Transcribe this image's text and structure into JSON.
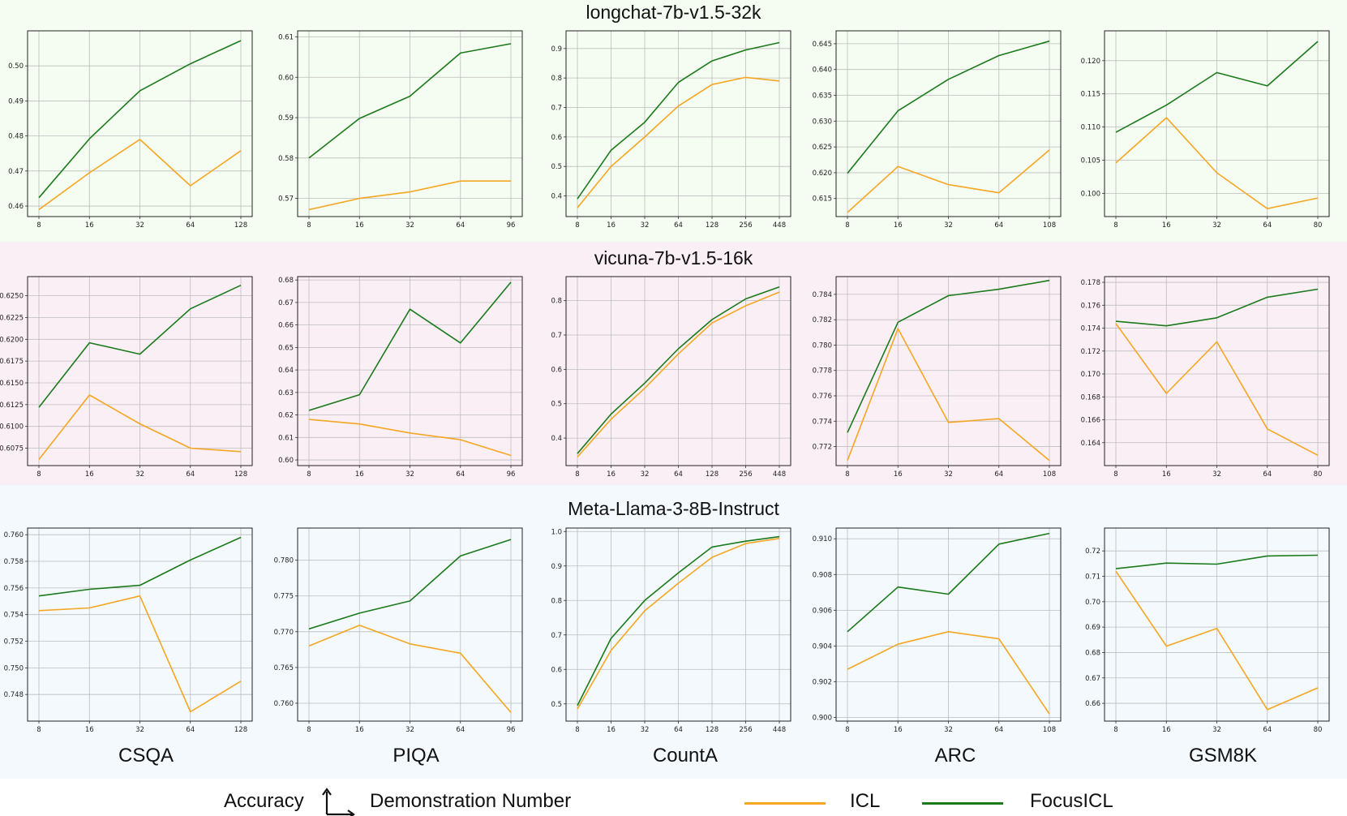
{
  "colors": {
    "icl": "#f5a623",
    "focus_icl": "#1b7a1b",
    "band_backgrounds": [
      "#f5fcf1",
      "#fbeff6",
      "#f3f9fd"
    ]
  },
  "column_labels": [
    "CSQA",
    "PIQA",
    "CountA",
    "ARC",
    "GSM8K"
  ],
  "legend": {
    "y_label": "Accuracy",
    "x_label": "Demonstration Number",
    "icl_label": "ICL",
    "focus_icl_label": "FocusICL"
  },
  "rows": [
    {
      "title": "longchat-7b-v1.5-32k"
    },
    {
      "title": "vicuna-7b-v1.5-16k"
    },
    {
      "title": "Meta-Llama-3-8B-Instruct"
    }
  ],
  "chart_data": [
    {
      "type": "line",
      "row": 0,
      "col": 0,
      "x": [
        "8",
        "16",
        "32",
        "64",
        "128"
      ],
      "ylim": [
        0.457,
        0.51
      ],
      "yticks": [
        "0.46",
        "0.47",
        "0.48",
        "0.49",
        "0.50"
      ],
      "series": [
        {
          "name": "ICL",
          "values": [
            0.459,
            0.4695,
            0.479,
            0.4658,
            0.4758
          ]
        },
        {
          "name": "FocusICL",
          "values": [
            0.4624,
            0.4792,
            0.4929,
            0.5006,
            0.5072
          ]
        }
      ]
    },
    {
      "type": "line",
      "row": 0,
      "col": 1,
      "x": [
        "8",
        "16",
        "32",
        "64",
        "96"
      ],
      "ylim": [
        0.5655,
        0.6115
      ],
      "yticks": [
        "0.57",
        "0.58",
        "0.59",
        "0.60",
        "0.61"
      ],
      "series": [
        {
          "name": "ICL",
          "values": [
            0.5672,
            0.57,
            0.5716,
            0.5743,
            0.5743
          ]
        },
        {
          "name": "FocusICL",
          "values": [
            0.58,
            0.5898,
            0.5953,
            0.606,
            0.6083
          ]
        }
      ]
    },
    {
      "type": "line",
      "row": 0,
      "col": 2,
      "x": [
        "8",
        "16",
        "32",
        "64",
        "128",
        "256",
        "448"
      ],
      "ylim": [
        0.33,
        0.96
      ],
      "yticks": [
        "0.4",
        "0.5",
        "0.6",
        "0.7",
        "0.8",
        "0.9"
      ],
      "series": [
        {
          "name": "ICL",
          "values": [
            0.36,
            0.5,
            0.6,
            0.705,
            0.778,
            0.802,
            0.79
          ]
        },
        {
          "name": "FocusICL",
          "values": [
            0.39,
            0.555,
            0.65,
            0.785,
            0.858,
            0.895,
            0.92
          ]
        }
      ]
    },
    {
      "type": "line",
      "row": 0,
      "col": 3,
      "x": [
        "8",
        "16",
        "32",
        "64",
        "108"
      ],
      "ylim": [
        0.6115,
        0.6475
      ],
      "yticks": [
        "0.615",
        "0.620",
        "0.625",
        "0.630",
        "0.635",
        "0.640",
        "0.645"
      ],
      "series": [
        {
          "name": "ICL",
          "values": [
            0.6123,
            0.6212,
            0.6177,
            0.6161,
            0.6244
          ]
        },
        {
          "name": "FocusICL",
          "values": [
            0.6199,
            0.632,
            0.6381,
            0.6427,
            0.6455
          ]
        }
      ]
    },
    {
      "type": "line",
      "row": 0,
      "col": 4,
      "x": [
        "8",
        "16",
        "32",
        "64",
        "80"
      ],
      "ylim": [
        0.0965,
        0.1245
      ],
      "yticks": [
        "0.100",
        "0.105",
        "0.110",
        "0.115",
        "0.120"
      ],
      "series": [
        {
          "name": "ICL",
          "values": [
            0.1046,
            0.1114,
            0.1031,
            0.0977,
            0.0993
          ]
        },
        {
          "name": "FocusICL",
          "values": [
            0.1092,
            0.1133,
            0.1182,
            0.1162,
            0.1229
          ]
        }
      ]
    },
    {
      "type": "line",
      "row": 1,
      "col": 0,
      "x": [
        "8",
        "16",
        "32",
        "64",
        "128"
      ],
      "ylim": [
        0.6055,
        0.6272
      ],
      "yticks": [
        "0.6075",
        "0.6100",
        "0.6125",
        "0.6150",
        "0.6175",
        "0.6200",
        "0.6225",
        "0.6250"
      ],
      "series": [
        {
          "name": "ICL",
          "values": [
            0.6062,
            0.6136,
            0.6103,
            0.6075,
            0.6071
          ]
        },
        {
          "name": "FocusICL",
          "values": [
            0.6122,
            0.6196,
            0.6183,
            0.6235,
            0.6262
          ]
        }
      ]
    },
    {
      "type": "line",
      "row": 1,
      "col": 1,
      "x": [
        "8",
        "16",
        "32",
        "64",
        "96"
      ],
      "ylim": [
        0.5975,
        0.6815
      ],
      "yticks": [
        "0.60",
        "0.61",
        "0.62",
        "0.63",
        "0.64",
        "0.65",
        "0.66",
        "0.67",
        "0.68"
      ],
      "series": [
        {
          "name": "ICL",
          "values": [
            0.618,
            0.616,
            0.612,
            0.609,
            0.602
          ]
        },
        {
          "name": "FocusICL",
          "values": [
            0.622,
            0.629,
            0.667,
            0.652,
            0.679
          ]
        }
      ]
    },
    {
      "type": "line",
      "row": 1,
      "col": 2,
      "x": [
        "8",
        "16",
        "32",
        "64",
        "128",
        "256",
        "448"
      ],
      "ylim": [
        0.32,
        0.87
      ],
      "yticks": [
        "0.4",
        "0.5",
        "0.6",
        "0.7",
        "0.8"
      ],
      "series": [
        {
          "name": "ICL",
          "values": [
            0.345,
            0.455,
            0.545,
            0.645,
            0.735,
            0.785,
            0.825
          ]
        },
        {
          "name": "FocusICL",
          "values": [
            0.355,
            0.47,
            0.56,
            0.66,
            0.745,
            0.805,
            0.84
          ]
        }
      ]
    },
    {
      "type": "line",
      "row": 1,
      "col": 3,
      "x": [
        "8",
        "16",
        "32",
        "64",
        "108"
      ],
      "ylim": [
        0.7705,
        0.7854
      ],
      "yticks": [
        "0.772",
        "0.774",
        "0.776",
        "0.778",
        "0.780",
        "0.782",
        "0.784"
      ],
      "series": [
        {
          "name": "ICL",
          "values": [
            0.7709,
            0.7813,
            0.7739,
            0.7742,
            0.7709
          ]
        },
        {
          "name": "FocusICL",
          "values": [
            0.7731,
            0.7818,
            0.7839,
            0.7844,
            0.7851
          ]
        }
      ]
    },
    {
      "type": "line",
      "row": 1,
      "col": 4,
      "x": [
        "8",
        "16",
        "32",
        "64",
        "80"
      ],
      "ylim": [
        0.162,
        0.1785
      ],
      "yticks": [
        "0.164",
        "0.166",
        "0.168",
        "0.170",
        "0.172",
        "0.174",
        "0.176",
        "0.178"
      ],
      "series": [
        {
          "name": "ICL",
          "values": [
            0.1744,
            0.1683,
            0.1728,
            0.1652,
            0.1629
          ]
        },
        {
          "name": "FocusICL",
          "values": [
            0.1746,
            0.1742,
            0.1749,
            0.1767,
            0.1774
          ]
        }
      ]
    },
    {
      "type": "line",
      "row": 2,
      "col": 0,
      "x": [
        "8",
        "16",
        "32",
        "64",
        "128"
      ],
      "ylim": [
        0.746,
        0.7605
      ],
      "yticks": [
        "0.748",
        "0.750",
        "0.752",
        "0.754",
        "0.756",
        "0.758",
        "0.760"
      ],
      "series": [
        {
          "name": "ICL",
          "values": [
            0.7543,
            0.7545,
            0.7554,
            0.7467,
            0.749
          ]
        },
        {
          "name": "FocusICL",
          "values": [
            0.7554,
            0.7559,
            0.7562,
            0.7581,
            0.7598
          ]
        }
      ]
    },
    {
      "type": "line",
      "row": 2,
      "col": 1,
      "x": [
        "8",
        "16",
        "32",
        "64",
        "96"
      ],
      "ylim": [
        0.7575,
        0.7845
      ],
      "yticks": [
        "0.760",
        "0.765",
        "0.770",
        "0.775",
        "0.780"
      ],
      "series": [
        {
          "name": "ICL",
          "values": [
            0.768,
            0.7709,
            0.7683,
            0.767,
            0.7587
          ]
        },
        {
          "name": "FocusICL",
          "values": [
            0.7704,
            0.7726,
            0.7743,
            0.7806,
            0.7829
          ]
        }
      ]
    },
    {
      "type": "line",
      "row": 2,
      "col": 2,
      "x": [
        "8",
        "16",
        "32",
        "64",
        "128",
        "256",
        "448"
      ],
      "ylim": [
        0.45,
        1.01
      ],
      "yticks": [
        "0.5",
        "0.6",
        "0.7",
        "0.8",
        "0.9",
        "1.0"
      ],
      "series": [
        {
          "name": "ICL",
          "values": [
            0.485,
            0.655,
            0.77,
            0.85,
            0.925,
            0.965,
            0.98
          ]
        },
        {
          "name": "FocusICL",
          "values": [
            0.495,
            0.69,
            0.8,
            0.88,
            0.955,
            0.972,
            0.985
          ]
        }
      ]
    },
    {
      "type": "line",
      "row": 2,
      "col": 3,
      "x": [
        "8",
        "16",
        "32",
        "64",
        "108"
      ],
      "ylim": [
        0.8998,
        0.9106
      ],
      "yticks": [
        "0.900",
        "0.902",
        "0.904",
        "0.906",
        "0.908",
        "0.910"
      ],
      "series": [
        {
          "name": "ICL",
          "values": [
            0.9027,
            0.9041,
            0.9048,
            0.9044,
            0.9002
          ]
        },
        {
          "name": "FocusICL",
          "values": [
            0.9048,
            0.9073,
            0.9069,
            0.9097,
            0.9103
          ]
        }
      ]
    },
    {
      "type": "line",
      "row": 2,
      "col": 4,
      "x": [
        "8",
        "16",
        "32",
        "64",
        "80"
      ],
      "ylim": [
        0.653,
        0.729
      ],
      "yticks": [
        "0.66",
        "0.67",
        "0.68",
        "0.69",
        "0.70",
        "0.71",
        "0.72"
      ],
      "series": [
        {
          "name": "ICL",
          "values": [
            0.712,
            0.6825,
            0.6895,
            0.6575,
            0.6661
          ]
        },
        {
          "name": "FocusICL",
          "values": [
            0.713,
            0.7152,
            0.7148,
            0.718,
            0.7183
          ]
        }
      ]
    }
  ]
}
